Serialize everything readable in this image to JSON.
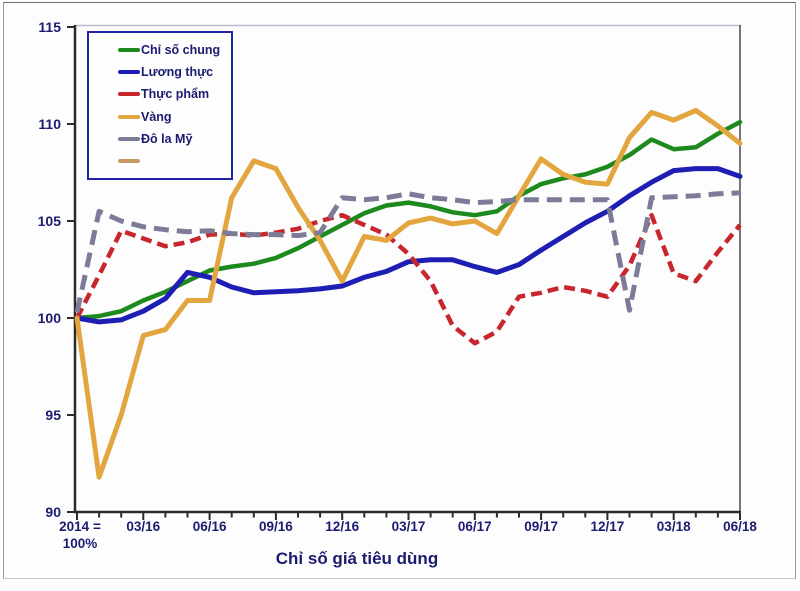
{
  "chart_data": {
    "type": "line",
    "title": "Chỉ số giá tiêu dùng",
    "xlabel": "",
    "ylabel": "",
    "ylim": [
      90,
      115
    ],
    "yticks": [
      90,
      95,
      100,
      105,
      110,
      115
    ],
    "n_points": 31,
    "xtick_every": 3,
    "xtick_labels": [
      "2014 =\n100%",
      "03/16",
      "06/16",
      "09/16",
      "12/16",
      "03/17",
      "06/17",
      "09/17",
      "12/17",
      "03/18",
      "06/18"
    ],
    "grid": false,
    "legend_position": "top-left",
    "colors": {
      "axis": "#2B2B2B",
      "text": "#1B1B70",
      "legend_border": "#2323A8",
      "plot_top_border": "#BCBCCC",
      "plot_right_border": "#4A4A52"
    },
    "series": [
      {
        "name": "Chỉ số chung",
        "color": "#1E8A1E",
        "dash": null,
        "values": [
          100.0,
          100.1,
          100.35,
          100.9,
          101.35,
          101.9,
          102.45,
          102.65,
          102.8,
          103.1,
          103.6,
          104.2,
          104.8,
          105.4,
          105.8,
          105.95,
          105.75,
          105.45,
          105.3,
          105.5,
          106.3,
          106.9,
          107.2,
          107.4,
          107.8,
          108.4,
          109.2,
          108.7,
          108.8,
          109.5,
          110.1
        ]
      },
      {
        "name": "Lương thực",
        "color": "#1E1EB4",
        "dash": null,
        "values": [
          100.0,
          99.8,
          99.9,
          100.35,
          101.0,
          102.35,
          102.1,
          101.6,
          101.3,
          101.35,
          101.4,
          101.5,
          101.65,
          102.1,
          102.4,
          102.9,
          103.0,
          103.0,
          102.65,
          102.35,
          102.75,
          103.5,
          104.2,
          104.9,
          105.5,
          106.3,
          107.0,
          107.6,
          107.7,
          107.7,
          107.3
        ]
      },
      {
        "name": "Thực phẩm",
        "color": "#C8252C",
        "dash": "11 6",
        "values": [
          100.0,
          102.2,
          104.5,
          104.1,
          103.7,
          103.9,
          104.3,
          104.35,
          104.25,
          104.4,
          104.6,
          105.0,
          105.3,
          104.8,
          104.3,
          103.3,
          101.9,
          99.6,
          98.7,
          99.3,
          101.1,
          101.3,
          101.6,
          101.4,
          101.1,
          102.7,
          105.3,
          102.3,
          101.9,
          103.4,
          104.8
        ]
      },
      {
        "name": "Vàng",
        "color": "#E3A63E",
        "dash": null,
        "values": [
          100.0,
          91.8,
          95.0,
          99.1,
          99.4,
          100.9,
          100.9,
          106.2,
          108.1,
          107.7,
          105.7,
          104.0,
          101.9,
          104.2,
          104.0,
          104.9,
          105.15,
          104.85,
          105.0,
          104.35,
          106.3,
          108.2,
          107.4,
          107.0,
          106.9,
          109.3,
          110.6,
          110.2,
          110.7,
          109.9,
          109.0
        ]
      },
      {
        "name": "Đô la Mỹ",
        "color": "#7C7C99",
        "dash": "15 8",
        "values": [
          100.3,
          105.5,
          105.0,
          104.7,
          104.55,
          104.45,
          104.5,
          104.35,
          104.3,
          104.3,
          104.25,
          104.4,
          106.2,
          106.1,
          106.2,
          106.4,
          106.2,
          106.1,
          105.95,
          106.0,
          106.1,
          106.1,
          106.1,
          106.1,
          106.1,
          100.4,
          106.2,
          106.25,
          106.3,
          106.4,
          106.45
        ]
      },
      {
        "name": "",
        "color": "#C89A62",
        "dash": null,
        "values": []
      }
    ]
  }
}
